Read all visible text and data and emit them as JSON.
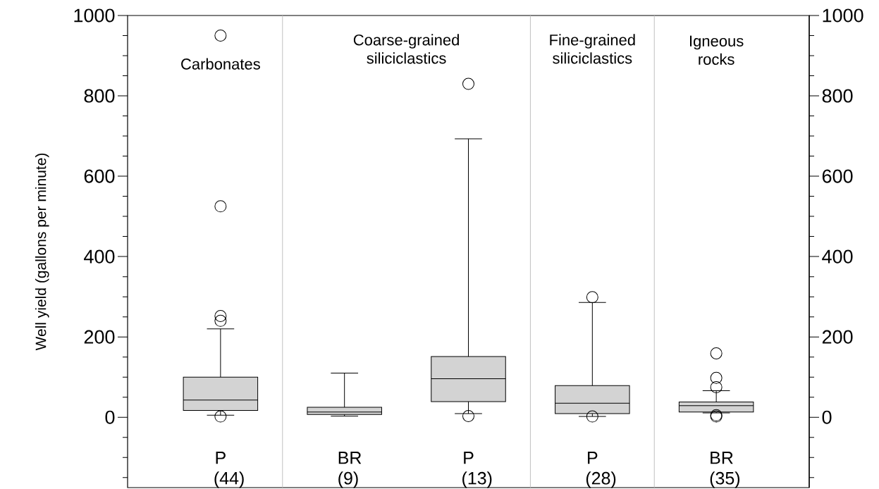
{
  "chart_data": {
    "type": "box",
    "ylabel": "Well yield (gallons per minute)",
    "categories": [
      "P (44)",
      "BR (9)",
      "P (13)",
      "P (28)",
      "BR (35)"
    ],
    "color": "#d3d3d3",
    "marker": "circle",
    "boxes": [
      {
        "low": 5,
        "q1": 17,
        "median": 43,
        "q3": 100,
        "high": 220,
        "outliers": [
          950,
          525,
          252,
          240,
          2
        ]
      },
      {
        "low": 3,
        "q1": 7,
        "median": 13,
        "q3": 25,
        "high": 110
      },
      {
        "low": 9,
        "q1": 39,
        "median": 96,
        "q3": 151,
        "high": 693,
        "outliers": [
          830,
          3
        ]
      },
      {
        "low": 2,
        "q1": 9,
        "median": 35,
        "q3": 79,
        "high": 286,
        "outliers": [
          299,
          2
        ]
      },
      {
        "low": 11,
        "q1": 13,
        "median": 29,
        "q3": 38,
        "high": 66,
        "outliers": [
          159,
          98,
          75,
          5,
          2
        ]
      }
    ],
    "ylim": [
      -175,
      1000
    ],
    "yticks": [
      0,
      200,
      400,
      600,
      800,
      1000,
      {
        "value": -150,
        "label": null
      },
      {
        "value": -100,
        "label": null
      },
      {
        "value": -50,
        "label": null
      },
      {
        "value": 50,
        "label": null
      },
      {
        "value": 100,
        "label": null
      },
      {
        "value": 150,
        "label": null
      },
      {
        "value": 250,
        "label": null
      },
      {
        "value": 300,
        "label": null
      },
      {
        "value": 350,
        "label": null
      },
      {
        "value": 450,
        "label": null
      },
      {
        "value": 500,
        "label": null
      },
      {
        "value": 550,
        "label": null
      },
      {
        "value": 650,
        "label": null
      },
      {
        "value": 700,
        "label": null
      },
      {
        "value": 750,
        "label": null
      },
      {
        "value": 850,
        "label": null
      },
      {
        "value": 900,
        "label": null
      },
      {
        "value": 950,
        "label": null
      }
    ],
    "y2lim": [
      -175,
      1000
    ],
    "y2ticks": [
      0,
      200,
      400,
      600,
      800,
      1000,
      {
        "value": -150,
        "label": null
      },
      {
        "value": -100,
        "label": null
      },
      {
        "value": -50,
        "label": null
      },
      {
        "value": 50,
        "label": null
      },
      {
        "value": 100,
        "label": null
      },
      {
        "value": 150,
        "label": null
      },
      {
        "value": 250,
        "label": null
      },
      {
        "value": 300,
        "label": null
      },
      {
        "value": 350,
        "label": null
      },
      {
        "value": 450,
        "label": null
      },
      {
        "value": 500,
        "label": null
      },
      {
        "value": 550,
        "label": null
      },
      {
        "value": 650,
        "label": null
      },
      {
        "value": 700,
        "label": null
      },
      {
        "value": 750,
        "label": null
      },
      {
        "value": 850,
        "label": null
      },
      {
        "value": 900,
        "label": null
      },
      {
        "value": 950,
        "label": null
      }
    ],
    "annotations": [
      "Carbonates",
      "Coarse-grained siliciclastics",
      "Fine-grained siliciclastics",
      "Igneous rocks"
    ]
  }
}
